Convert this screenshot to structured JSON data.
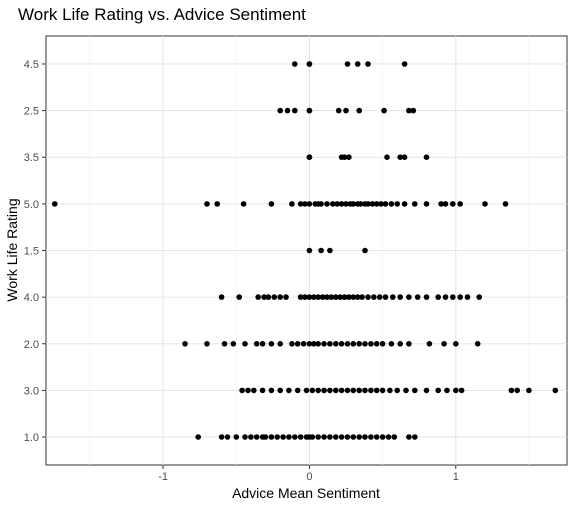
{
  "chart_data": {
    "type": "scatter",
    "title": "Work Life Rating vs. Advice Sentiment",
    "xlabel": "Advice Mean Sentiment",
    "ylabel": "Work Life Rating",
    "xlim": [
      -1.8,
      1.76
    ],
    "x_ticks": [
      -1,
      0,
      1
    ],
    "x_tick_labels": [
      "-1",
      "0",
      "1"
    ],
    "categories": [
      "1.0",
      "3.0",
      "2.0",
      "4.0",
      "1.5",
      "5.0",
      "3.5",
      "2.5",
      "4.5"
    ],
    "grid": true,
    "legend": "none",
    "point_color": "#000000",
    "points": [
      {
        "category": "4.5",
        "x": [
          -0.1,
          0.0,
          0.0,
          0.26,
          0.33,
          0.4,
          0.65
        ]
      },
      {
        "category": "2.5",
        "x": [
          -0.2,
          -0.15,
          -0.1,
          0.0,
          0.0,
          0.2,
          0.25,
          0.34,
          0.51,
          0.68,
          0.71
        ]
      },
      {
        "category": "3.5",
        "x": [
          0.0,
          0.0,
          0.22,
          0.24,
          0.27,
          0.53,
          0.62,
          0.65,
          0.8
        ]
      },
      {
        "category": "5.0",
        "x": [
          -1.74,
          -0.7,
          -0.63,
          -0.45,
          -0.26,
          -0.12,
          -0.06,
          -0.03,
          0.0,
          0.04,
          0.06,
          0.08,
          0.12,
          0.16,
          0.19,
          0.22,
          0.25,
          0.28,
          0.3,
          0.33,
          0.35,
          0.38,
          0.4,
          0.43,
          0.46,
          0.49,
          0.52,
          0.56,
          0.6,
          0.65,
          0.72,
          0.8,
          0.9,
          0.93,
          0.98,
          1.03,
          1.2,
          1.34
        ]
      },
      {
        "category": "1.5",
        "x": [
          0.0,
          0.08,
          0.14,
          0.38
        ]
      },
      {
        "category": "4.0",
        "x": [
          -0.6,
          -0.48,
          -0.35,
          -0.31,
          -0.28,
          -0.24,
          -0.2,
          -0.16,
          -0.06,
          -0.03,
          0.0,
          0.03,
          0.06,
          0.09,
          0.12,
          0.15,
          0.18,
          0.21,
          0.24,
          0.27,
          0.3,
          0.33,
          0.36,
          0.4,
          0.44,
          0.48,
          0.52,
          0.57,
          0.62,
          0.68,
          0.74,
          0.8,
          0.88,
          0.93,
          0.98,
          1.03,
          1.08,
          1.16
        ]
      },
      {
        "category": "2.0",
        "x": [
          -0.85,
          -0.7,
          -0.58,
          -0.52,
          -0.44,
          -0.36,
          -0.32,
          -0.26,
          -0.2,
          -0.12,
          -0.08,
          -0.04,
          0.0,
          0.03,
          0.06,
          0.1,
          0.14,
          0.18,
          0.22,
          0.26,
          0.3,
          0.34,
          0.38,
          0.42,
          0.46,
          0.5,
          0.56,
          0.62,
          0.68,
          0.82,
          0.92,
          1.0,
          1.15
        ]
      },
      {
        "category": "3.0",
        "x": [
          -0.46,
          -0.42,
          -0.38,
          -0.32,
          -0.26,
          -0.2,
          -0.14,
          -0.08,
          -0.02,
          0.02,
          0.06,
          0.1,
          0.14,
          0.18,
          0.22,
          0.26,
          0.3,
          0.34,
          0.38,
          0.42,
          0.46,
          0.5,
          0.55,
          0.6,
          0.66,
          0.72,
          0.8,
          0.88,
          0.94,
          1.0,
          1.04,
          1.38,
          1.42,
          1.5,
          1.68
        ]
      },
      {
        "category": "1.0",
        "x": [
          -0.76,
          -0.6,
          -0.56,
          -0.5,
          -0.44,
          -0.4,
          -0.36,
          -0.32,
          -0.3,
          -0.26,
          -0.22,
          -0.18,
          -0.14,
          -0.1,
          -0.06,
          -0.02,
          0.0,
          0.02,
          0.06,
          0.1,
          0.14,
          0.18,
          0.22,
          0.26,
          0.3,
          0.34,
          0.38,
          0.42,
          0.46,
          0.5,
          0.54,
          0.58,
          0.68,
          0.72
        ]
      }
    ]
  }
}
